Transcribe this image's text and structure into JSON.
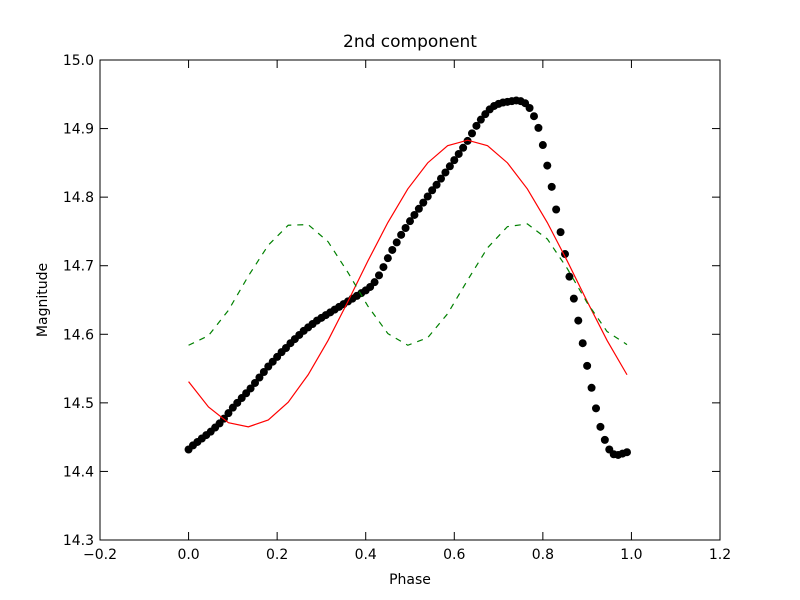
{
  "chart_data": {
    "type": "line",
    "title": "2nd component",
    "xlabel": "Phase",
    "ylabel": "Magnitude",
    "xlim": [
      -0.2,
      1.2
    ],
    "ylim": [
      14.3,
      15.0
    ],
    "xticks": [
      {
        "value": -0.2,
        "label": "−0.2"
      },
      {
        "value": 0,
        "label": "0.0"
      },
      {
        "value": 0.2,
        "label": "0.2"
      },
      {
        "value": 0.4,
        "label": "0.4"
      },
      {
        "value": 0.6,
        "label": "0.6"
      },
      {
        "value": 0.8,
        "label": "0.8"
      },
      {
        "value": 1,
        "label": "1.0"
      },
      {
        "value": 1.2,
        "label": "1.2"
      }
    ],
    "yticks": [
      14.3,
      14.4,
      14.5,
      14.6,
      14.7,
      14.8,
      14.9,
      {
        "value": 15,
        "label": "15.0"
      }
    ],
    "series": [
      {
        "color": "#000000",
        "linestyle": "none",
        "x": [
          0,
          0.01,
          0.02,
          0.03,
          0.04,
          0.05,
          0.06,
          0.07,
          0.08,
          0.09,
          0.1,
          0.11,
          0.12,
          0.13,
          0.14,
          0.15,
          0.16,
          0.17,
          0.18,
          0.19,
          0.2,
          0.21,
          0.22,
          0.23,
          0.24,
          0.25,
          0.26,
          0.27,
          0.28,
          0.29,
          0.3,
          0.31,
          0.32,
          0.33,
          0.34,
          0.35,
          0.36,
          0.37,
          0.38,
          0.39,
          0.4,
          0.41,
          0.42,
          0.43,
          0.44,
          0.45,
          0.46,
          0.47,
          0.48,
          0.49,
          0.5,
          0.51,
          0.52,
          0.53,
          0.54,
          0.55,
          0.56,
          0.57,
          0.58,
          0.59,
          0.6,
          0.61,
          0.62,
          0.63,
          0.64,
          0.65,
          0.66,
          0.67,
          0.68,
          0.69,
          0.7,
          0.71,
          0.72,
          0.73,
          0.74,
          0.75,
          0.76,
          0.77,
          0.78,
          0.79,
          0.8,
          0.81,
          0.82,
          0.83,
          0.84,
          0.85,
          0.86,
          0.87,
          0.88,
          0.89,
          0.9,
          0.91,
          0.92,
          0.93,
          0.94,
          0.95,
          0.96,
          0.97,
          0.98,
          0.99
        ],
        "values": [
          14.432,
          14.438,
          14.443,
          14.448,
          14.453,
          14.458,
          14.464,
          14.47,
          14.477,
          14.485,
          14.493,
          14.5,
          14.507,
          14.514,
          14.521,
          14.529,
          14.537,
          14.545,
          14.553,
          14.56,
          14.567,
          14.574,
          14.58,
          14.587,
          14.593,
          14.599,
          14.605,
          14.61,
          14.615,
          14.62,
          14.624,
          14.628,
          14.632,
          14.636,
          14.64,
          14.644,
          14.648,
          14.652,
          14.656,
          14.66,
          14.664,
          14.669,
          14.676,
          14.686,
          14.698,
          14.711,
          14.723,
          14.734,
          14.745,
          14.755,
          14.765,
          14.774,
          14.783,
          14.792,
          14.801,
          14.81,
          14.818,
          14.827,
          14.836,
          14.845,
          14.854,
          14.863,
          14.872,
          14.882,
          14.893,
          14.904,
          14.913,
          14.921,
          14.928,
          14.933,
          14.936,
          14.938,
          14.939,
          14.94,
          14.941,
          14.94,
          14.937,
          14.93,
          14.918,
          14.901,
          14.876,
          14.846,
          14.815,
          14.782,
          14.749,
          14.717,
          14.684,
          14.652,
          14.62,
          14.587,
          14.554,
          14.522,
          14.492,
          14.465,
          14.446,
          14.432,
          14.425,
          14.424,
          14.426,
          14.428
        ]
      },
      {
        "color": "#ff0000",
        "linestyle": "-",
        "x": [
          0,
          0.045,
          0.09,
          0.135,
          0.18,
          0.225,
          0.27,
          0.315,
          0.36,
          0.405,
          0.45,
          0.495,
          0.54,
          0.585,
          0.63,
          0.675,
          0.72,
          0.765,
          0.81,
          0.855,
          0.9,
          0.945,
          0.99
        ],
        "values": [
          14.531,
          14.494,
          14.471,
          14.465,
          14.475,
          14.501,
          14.541,
          14.591,
          14.648,
          14.707,
          14.763,
          14.812,
          14.85,
          14.875,
          14.883,
          14.875,
          14.85,
          14.812,
          14.763,
          14.707,
          14.648,
          14.591,
          14.541
        ]
      },
      {
        "color": "#008000",
        "linestyle": "--",
        "x": [
          0,
          0.045,
          0.09,
          0.135,
          0.18,
          0.225,
          0.27,
          0.315,
          0.36,
          0.405,
          0.45,
          0.495,
          0.54,
          0.585,
          0.63,
          0.675,
          0.72,
          0.765,
          0.81,
          0.855,
          0.9,
          0.945,
          0.99
        ],
        "values": [
          14.584,
          14.598,
          14.635,
          14.685,
          14.73,
          14.759,
          14.76,
          14.735,
          14.69,
          14.641,
          14.601,
          14.584,
          14.595,
          14.63,
          14.679,
          14.726,
          14.757,
          14.761,
          14.739,
          14.696,
          14.646,
          14.604,
          14.585
        ]
      }
    ]
  }
}
